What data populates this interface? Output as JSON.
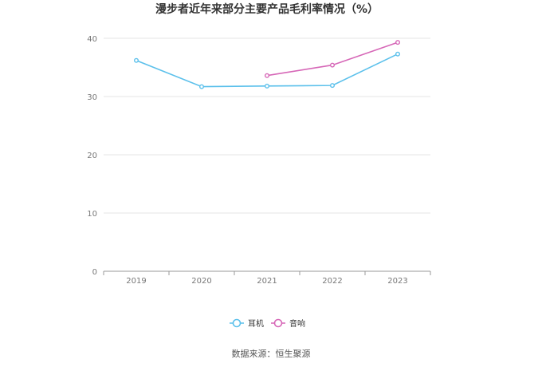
{
  "chart_data": {
    "type": "line",
    "title": "漫步者近年来部分主要产品毛利率情况（%）",
    "xlabel": "",
    "ylabel": "",
    "categories": [
      "2019",
      "2020",
      "2021",
      "2022",
      "2023"
    ],
    "ylim": [
      0,
      40
    ],
    "yticks": [
      0,
      10,
      20,
      30,
      40
    ],
    "grid": true,
    "legend_position": "bottom",
    "series": [
      {
        "name": "耳机",
        "color": "#5bc0eb",
        "values": [
          36.2,
          31.7,
          31.8,
          31.9,
          37.3
        ]
      },
      {
        "name": "音响",
        "color": "#d667b7",
        "values": [
          null,
          null,
          33.6,
          35.4,
          39.3
        ]
      }
    ]
  },
  "footer": {
    "source": "数据来源：恒生聚源"
  }
}
